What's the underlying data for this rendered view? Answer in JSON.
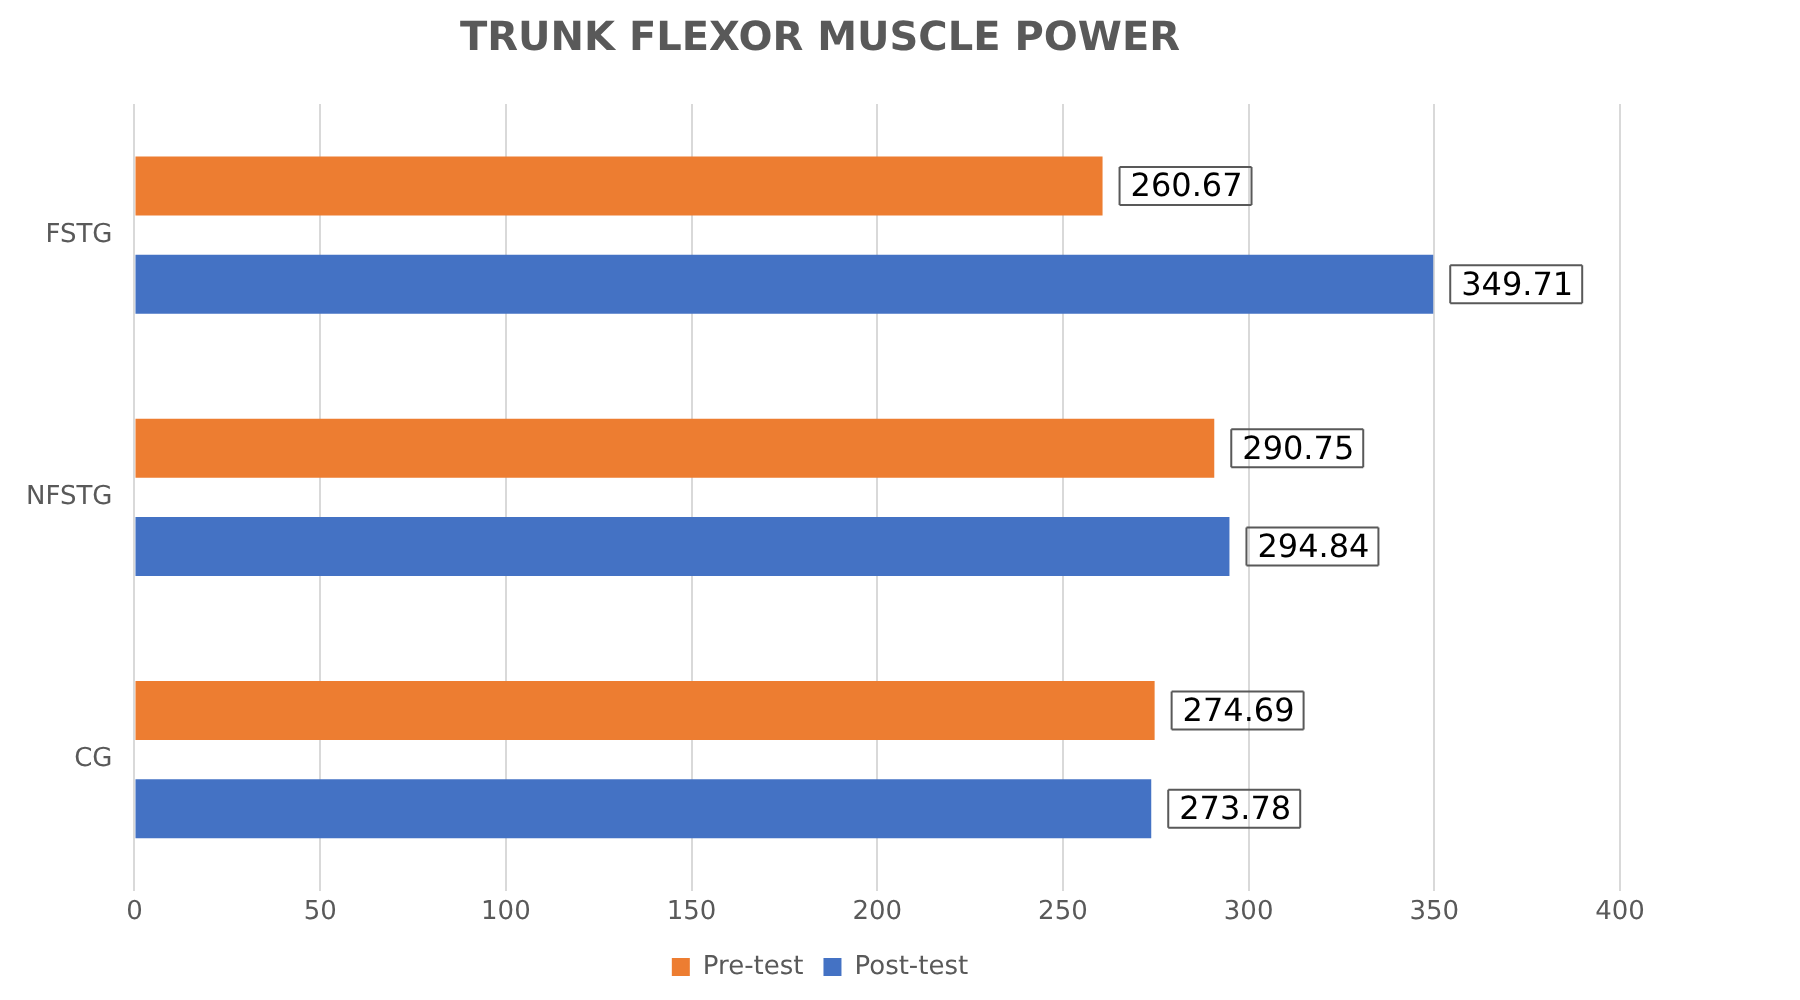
{
  "chart_data": {
    "type": "bar",
    "orientation": "horizontal",
    "title": "TRUNK FLEXOR MUSCLE POWER",
    "categories": [
      "FSTG",
      "NFSTG",
      "CG"
    ],
    "series": [
      {
        "name": "Pre-test",
        "color": "#ed7d31",
        "values": [
          260.67,
          290.75,
          274.69
        ]
      },
      {
        "name": "Post-test",
        "color": "#4472c4",
        "values": [
          349.71,
          294.84,
          273.78
        ]
      }
    ],
    "xlim": [
      0,
      400
    ],
    "xticks": [
      0,
      50,
      100,
      150,
      200,
      250,
      300,
      350,
      400
    ],
    "grid": "x",
    "legend": "bottom",
    "data_labels": true
  }
}
